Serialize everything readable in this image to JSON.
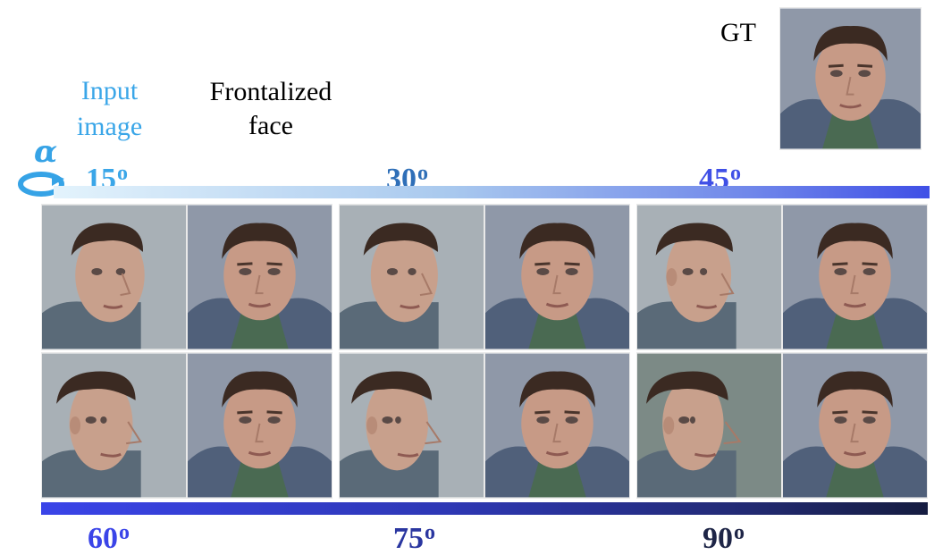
{
  "labels": {
    "gt": "GT",
    "input_line1": "Input",
    "input_line2": "image",
    "frontalized_line1": "Frontalized",
    "frontalized_line2": "face",
    "alpha": "α"
  },
  "angles": {
    "top": [
      {
        "value": "15",
        "unit": "o"
      },
      {
        "value": "30",
        "unit": "o"
      },
      {
        "value": "45",
        "unit": "o"
      }
    ],
    "bottom": [
      {
        "value": "60",
        "unit": "o"
      },
      {
        "value": "75",
        "unit": "o"
      },
      {
        "value": "90",
        "unit": "o"
      }
    ]
  },
  "colors": {
    "input_label": "#3aa6e8",
    "angle_15": "#3aa6e8",
    "angle_30": "#2f6fb8",
    "angle_45": "#3f4fe6",
    "angle_60": "#3a44e8",
    "angle_75": "#2a36a0",
    "angle_90": "#1e2547",
    "rotate_icon": "#36a3e6"
  },
  "rotate_icon": "rotation-arrow-icon",
  "photos": {
    "gt": "frontal-face-photo",
    "row1": [
      "profile-15-photo",
      "frontalized-15-photo",
      "profile-30-photo",
      "frontalized-30-photo",
      "profile-45-photo",
      "frontalized-45-photo"
    ],
    "row2": [
      "profile-60-photo",
      "frontalized-60-photo",
      "profile-75-photo",
      "frontalized-75-photo",
      "profile-90-photo",
      "frontalized-90-photo"
    ]
  }
}
